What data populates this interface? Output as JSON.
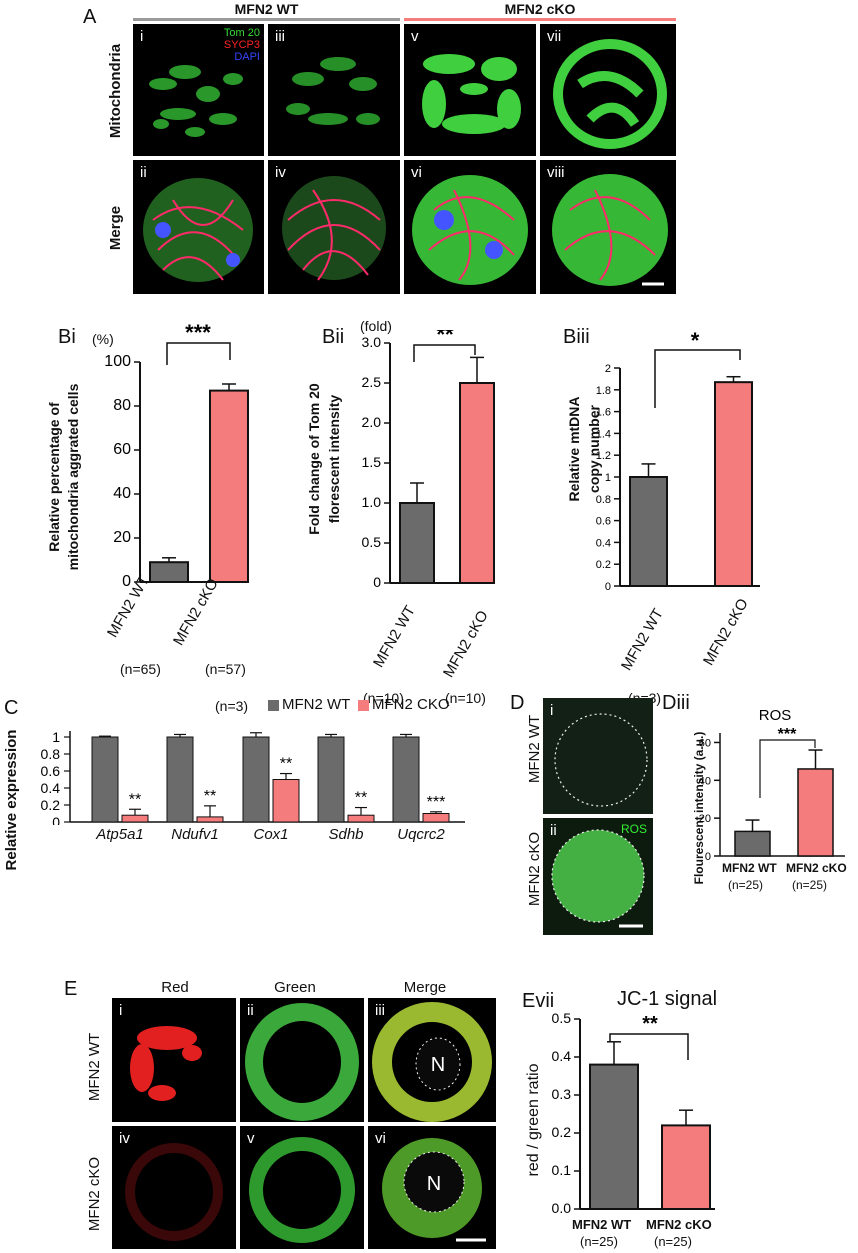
{
  "panelA": {
    "label": "A",
    "wt_header": "MFN2 WT",
    "cko_header": "MFN2 cKO",
    "row1_label": "Mitochondria",
    "row2_label": "Merge",
    "legend": [
      "Tom 20",
      "SYCP3",
      "DAPI"
    ],
    "legend_colors": [
      "#33dd33",
      "#ff2222",
      "#3344ff"
    ],
    "numerals": [
      "i",
      "ii",
      "iii",
      "iv",
      "v",
      "vi",
      "vii",
      "viii"
    ]
  },
  "bi": {
    "label": "Bi",
    "unit": "(%)",
    "ylabel1": "Relative percentage of",
    "ylabel2": "mitochondria aggrated cells",
    "sig": "***",
    "ticks": [
      "0",
      "20",
      "40",
      "60",
      "80",
      "100"
    ],
    "cats": [
      "MFN2 WT",
      "MFN2 cKO"
    ],
    "ns": [
      "(n=65)",
      "(n=57)"
    ]
  },
  "bii": {
    "label": "Bii",
    "unit": "(fold)",
    "ylabel1": "Fold change of Tom 20",
    "ylabel2": "florescent intensity",
    "sig": "**",
    "ticks": [
      "0",
      "0.5",
      "1.0",
      "1.5",
      "2.0",
      "2.5",
      "3.0"
    ],
    "cats": [
      "MFN2 WT",
      "MFN2 cKO"
    ],
    "ns": [
      "(n=10)",
      "(n=10)"
    ]
  },
  "biii": {
    "label": "Biii",
    "ylabel1": "Relative mtDNA",
    "ylabel2": "copy number",
    "sig": "*",
    "ticks": [
      "0",
      "0.2",
      "0.4",
      "0.6",
      "0.8",
      "1",
      "1.2",
      "1.4",
      "1.6",
      "1.8",
      "2"
    ],
    "cats": [
      "MFN2 WT",
      "MFN2 cKO"
    ],
    "ns": [
      "(n=3)"
    ]
  },
  "c": {
    "label": "C",
    "n": "(n=3)",
    "legend": [
      "MFN2 WT",
      "MFN2 CKO"
    ],
    "ylabel": "Relative expression",
    "ticks": [
      "0",
      "0.2",
      "0.4",
      "0.6",
      "0.8",
      "1"
    ],
    "genes": [
      "Atp5a1",
      "Ndufv1",
      "Cox1",
      "Sdhb",
      "Uqcrc2"
    ],
    "sigs": [
      "**",
      "**",
      "**",
      "**",
      "***"
    ]
  },
  "d": {
    "label": "D",
    "row_labels": [
      "MFN2 WT",
      "MFN2 cKO"
    ],
    "numerals": [
      "i",
      "ii"
    ],
    "stain": "ROS"
  },
  "diii": {
    "label": "Diii",
    "title": "ROS",
    "ylabel": "Flourescent intensity (a.u.)",
    "sig": "***",
    "ticks": [
      "0",
      "20",
      "40",
      "60"
    ],
    "cats": [
      "MFN2 WT",
      "MFN2 cKO"
    ],
    "ns": [
      "(n=25)",
      "(n=25)"
    ]
  },
  "e": {
    "label": "E",
    "col_headers": [
      "Red",
      "Green",
      "Merge"
    ],
    "row_labels": [
      "MFN2 WT",
      "MFN2 cKO"
    ],
    "numerals": [
      "i",
      "ii",
      "iii",
      "iv",
      "v",
      "vi"
    ],
    "nucleus": "N"
  },
  "evii": {
    "label": "Evii",
    "title": "JC-1 signal",
    "ylabel": "red / green ratio",
    "sig": "**",
    "ticks": [
      "0.0",
      "0.1",
      "0.2",
      "0.3",
      "0.4",
      "0.5"
    ],
    "cats": [
      "MFN2 WT",
      "MFN2 cKO"
    ],
    "ns": [
      "(n=25)",
      "(n=25)"
    ]
  },
  "chart_data": [
    {
      "type": "bar",
      "id": "Bi",
      "categories": [
        "MFN2 WT",
        "MFN2 cKO"
      ],
      "values": [
        9,
        87
      ],
      "errors": [
        2,
        3
      ],
      "ylim": [
        0,
        100
      ],
      "ylabel": "Relative percentage of mitochondria aggrated cells",
      "colors": [
        "#6b6b6b",
        "#f47c7c"
      ]
    },
    {
      "type": "bar",
      "id": "Bii",
      "categories": [
        "MFN2 WT",
        "MFN2 cKO"
      ],
      "values": [
        1.0,
        2.5
      ],
      "errors": [
        0.25,
        0.32
      ],
      "ylim": [
        0,
        3.0
      ],
      "ylabel": "Fold change of Tom 20 florescent intensity",
      "colors": [
        "#6b6b6b",
        "#f47c7c"
      ]
    },
    {
      "type": "bar",
      "id": "Biii",
      "categories": [
        "MFN2 WT",
        "MFN2 cKO"
      ],
      "values": [
        1.0,
        1.87
      ],
      "errors": [
        0.12,
        0.05
      ],
      "ylim": [
        0,
        2
      ],
      "ylabel": "Relative mtDNA copy number",
      "colors": [
        "#6b6b6b",
        "#f47c7c"
      ]
    },
    {
      "type": "bar",
      "id": "C",
      "categories": [
        "Atp5a1",
        "Ndufv1",
        "Cox1",
        "Sdhb",
        "Uqcrc2"
      ],
      "series": [
        {
          "name": "MFN2 WT",
          "values": [
            1,
            1,
            1,
            1,
            1
          ],
          "errors": [
            0.01,
            0.03,
            0.05,
            0.03,
            0.03
          ]
        },
        {
          "name": "MFN2 CKO",
          "values": [
            0.08,
            0.06,
            0.5,
            0.08,
            0.1
          ],
          "errors": [
            0.07,
            0.13,
            0.07,
            0.09,
            0.02
          ]
        }
      ],
      "ylim": [
        0,
        1.05
      ],
      "ylabel": "Relative expression",
      "colors": [
        "#6b6b6b",
        "#f47c7c"
      ]
    },
    {
      "type": "bar",
      "id": "Diii",
      "categories": [
        "MFN2 WT",
        "MFN2 cKO"
      ],
      "values": [
        13,
        46
      ],
      "errors": [
        6,
        10
      ],
      "ylim": [
        0,
        65
      ],
      "ylabel": "Flourescent intensity (a.u.)",
      "colors": [
        "#6b6b6b",
        "#f47c7c"
      ]
    },
    {
      "type": "bar",
      "id": "Evii",
      "categories": [
        "MFN2 WT",
        "MFN2 cKO"
      ],
      "values": [
        0.38,
        0.22
      ],
      "errors": [
        0.06,
        0.04
      ],
      "ylim": [
        0,
        0.5
      ],
      "ylabel": "red / green ratio",
      "colors": [
        "#6b6b6b",
        "#f47c7c"
      ]
    }
  ]
}
